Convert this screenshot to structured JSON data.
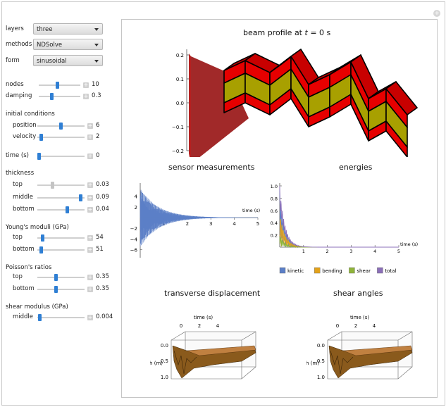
{
  "controls": {
    "layers": {
      "label": "layers",
      "value": "three"
    },
    "methods": {
      "label": "methods",
      "value": "NDSolve"
    },
    "form": {
      "label": "form",
      "value": "sinusoidal"
    },
    "nodes": {
      "label": "nodes",
      "value": "10",
      "level": 0.45
    },
    "damping": {
      "label": "damping",
      "value": "0.3",
      "level": 0.3
    },
    "initial_conditions": "initial conditions",
    "position": {
      "label": "position",
      "value": "6",
      "level": 0.5
    },
    "velocity": {
      "label": "velocity",
      "value": "2",
      "level": 0.05
    },
    "time": {
      "label": "time (s)",
      "value": "0",
      "level": 0.0
    },
    "thickness": "thickness",
    "th_top": {
      "label": "top",
      "value": "0.03",
      "level": 0.3
    },
    "th_middle": {
      "label": "middle",
      "value": "0.09",
      "level": 0.95
    },
    "th_bottom": {
      "label": "bottom",
      "value": "0.04",
      "level": 0.65
    },
    "youngs": "Young's moduli (GPa)",
    "ym_top": {
      "label": "top",
      "value": "54",
      "level": 0.08
    },
    "ym_bottom": {
      "label": "bottom",
      "value": "51",
      "level": 0.05
    },
    "poisson": "Poisson's ratios",
    "pr_top": {
      "label": "top",
      "value": "0.35",
      "level": 0.38
    },
    "pr_bottom": {
      "label": "bottom",
      "value": "0.35",
      "level": 0.38
    },
    "shear": "shear modulus (GPa)",
    "sm_middle": {
      "label": "middle",
      "value": "0.004",
      "level": 0.02
    }
  },
  "beam": {
    "title_prefix": "beam profile at ",
    "title_var": "t",
    "title_suffix": " = 0 s",
    "yticks": [
      "0.2",
      "0.1",
      "0.0",
      "−0.1",
      "−0.2"
    ]
  },
  "sensor": {
    "title": "sensor measurements",
    "chart_data": {
      "type": "line",
      "title": "sensor measurements",
      "xlabel": "time (s)",
      "xlim": [
        0,
        5
      ],
      "ylim": [
        -6,
        6
      ],
      "xticks": [
        "1",
        "2",
        "3",
        "4",
        "5"
      ],
      "yticks": [
        "4",
        "2",
        "−2",
        "−4",
        "−6"
      ],
      "series": [
        {
          "values_description": "decaying oscillation",
          "amplitude0": 5.5,
          "decay": 1.3
        }
      ]
    }
  },
  "energies": {
    "title": "energies",
    "chart_data": {
      "type": "line",
      "xlabel": "time (s)",
      "xlim": [
        0,
        5
      ],
      "ylim": [
        0,
        1.0
      ],
      "xticks": [
        "1",
        "2",
        "3",
        "4",
        "5"
      ],
      "yticks": [
        "1.0",
        "0.8",
        "0.6",
        "0.4",
        "0.2"
      ],
      "series": [
        {
          "name": "kinetic"
        },
        {
          "name": "bending"
        },
        {
          "name": "shear"
        },
        {
          "name": "total"
        }
      ]
    },
    "legend": [
      {
        "name": "kinetic",
        "color": "#5b7fc7"
      },
      {
        "name": "bending",
        "color": "#e3a21a"
      },
      {
        "name": "shear",
        "color": "#8fb43a"
      },
      {
        "name": "total",
        "color": "#8b6fb8"
      }
    ]
  },
  "transverse": {
    "title": "transverse displacement",
    "time_label": "time (s)",
    "time_ticks": [
      "0",
      "2",
      "4"
    ],
    "length_label": "length (m)",
    "length_ticks": [
      "0.0",
      "0.5",
      "1.0"
    ]
  },
  "shearangles": {
    "title": "shear angles",
    "time_label": "time (s)",
    "time_ticks": [
      "0",
      "2",
      "4"
    ],
    "length_label": "length (m)",
    "length_ticks": [
      "0.0",
      "0.5",
      "1.0"
    ]
  },
  "colors": {
    "accent": "#2f7fd4",
    "beam_red": "#e60000",
    "beam_olive": "#a8a000",
    "sensor_line": "#5b7fc7"
  }
}
